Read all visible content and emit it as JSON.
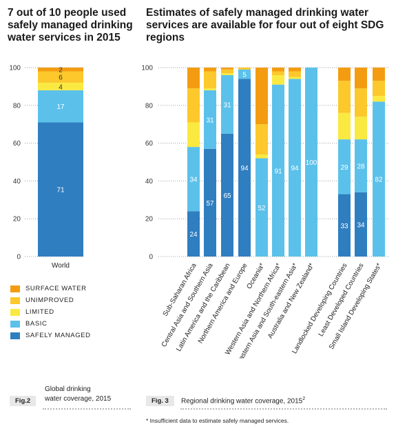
{
  "left_title": "7 out of 10 people used safely managed drinking water services in 2015",
  "right_title": "Estimates of safely managed drinking water services are available for four out of eight SDG regions",
  "colors": {
    "surface_water": "#f39c12",
    "unimproved": "#fcc82b",
    "limited": "#fae941",
    "basic": "#5bc1ea",
    "safely_managed": "#2f7ec0"
  },
  "legend": [
    {
      "key": "surface_water",
      "label": "SURFACE WATER"
    },
    {
      "key": "unimproved",
      "label": "UNIMPROVED"
    },
    {
      "key": "limited",
      "label": "LIMITED"
    },
    {
      "key": "basic",
      "label": "BASIC"
    },
    {
      "key": "safely_managed",
      "label": "SAFELY MANAGED"
    }
  ],
  "chart_data": [
    {
      "type": "bar",
      "stacked": true,
      "ylim": [
        0,
        100
      ],
      "yticks": [
        "0",
        "20",
        "40",
        "60",
        "80",
        "100"
      ],
      "categories": [
        "World"
      ],
      "series": [
        {
          "name": "SAFELY MANAGED",
          "key": "safely_managed",
          "values": [
            71
          ],
          "labels": [
            "71"
          ]
        },
        {
          "name": "BASIC",
          "key": "basic",
          "values": [
            17
          ],
          "labels": [
            "17"
          ]
        },
        {
          "name": "LIMITED",
          "key": "limited",
          "values": [
            4
          ],
          "labels": [
            "4"
          ]
        },
        {
          "name": "UNIMPROVED",
          "key": "unimproved",
          "values": [
            6
          ],
          "labels": [
            "6"
          ]
        },
        {
          "name": "SURFACE WATER",
          "key": "surface_water",
          "values": [
            2
          ],
          "labels": [
            "2"
          ]
        }
      ]
    },
    {
      "type": "bar",
      "stacked": true,
      "ylim": [
        0,
        100
      ],
      "yticks": [
        "0",
        "20",
        "40",
        "60",
        "80",
        "100"
      ],
      "categories": [
        "Sub-Saharan Africa",
        "Central Asia and Southern Asia",
        "Latin America and the Caribbean",
        "Northern America and Europe",
        "Oceania*",
        "Western Asia and Northern Africa*",
        "Eastern Asia and South-eastern Asia*",
        "Australia and New Zealand*",
        "Landlocked Developing Countries",
        "Least Developed Countries",
        "Small Island Developing States*"
      ],
      "series": [
        {
          "name": "SAFELY MANAGED",
          "key": "safely_managed",
          "values": [
            24,
            57,
            65,
            94,
            0,
            0,
            0,
            0,
            33,
            34,
            0
          ],
          "labels": [
            "24",
            "57",
            "65",
            "94",
            "",
            "",
            "",
            "",
            "33",
            "34",
            ""
          ]
        },
        {
          "name": "BASIC",
          "key": "basic",
          "values": [
            34,
            31,
            31,
            5,
            52,
            91,
            94,
            100,
            29,
            28,
            82
          ],
          "labels": [
            "34",
            "31",
            "31",
            "5",
            "52",
            "91",
            "94",
            "100",
            "29",
            "28",
            "82"
          ]
        },
        {
          "name": "LIMITED",
          "key": "limited",
          "values": [
            13,
            1,
            1,
            0,
            2,
            5,
            1,
            0,
            14,
            12,
            3
          ],
          "labels": [
            "",
            "",
            "",
            "",
            "",
            "",
            "",
            "",
            "",
            "",
            ""
          ]
        },
        {
          "name": "UNIMPROVED",
          "key": "unimproved",
          "values": [
            18,
            9,
            2,
            1,
            16,
            2,
            3,
            0,
            17,
            15,
            8
          ],
          "labels": [
            "",
            "",
            "",
            "",
            "",
            "",
            "",
            "",
            "",
            "",
            ""
          ]
        },
        {
          "name": "SURFACE WATER",
          "key": "surface_water",
          "values": [
            11,
            2,
            1,
            0,
            30,
            2,
            2,
            0,
            7,
            11,
            7
          ],
          "labels": [
            "",
            "",
            "",
            "",
            "",
            "",
            "",
            "",
            "",
            "",
            ""
          ]
        }
      ]
    }
  ],
  "fig2": {
    "tag": "Fig.2",
    "caption_line1": "Global drinking",
    "caption_line2": "water coverage, 2015"
  },
  "fig3": {
    "tag": "Fig. 3",
    "caption": "Regional drinking water coverage, 2015",
    "caption_sup": "2"
  },
  "footnote": "* Insufficient data to estimate safely managed services."
}
